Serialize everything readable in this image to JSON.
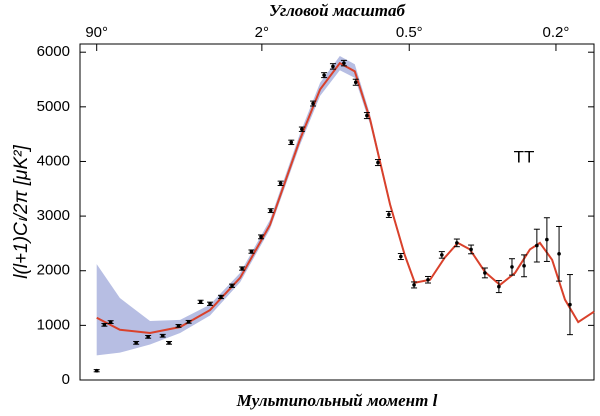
{
  "chart_data": {
    "type": "scatter",
    "top_axis_label": "Угловой масштаб",
    "x_label": "Мультипольный момент l",
    "y_label": "l(l+1)Cₗ/2π [μK²]",
    "annotation": "TT",
    "xscale": "power",
    "xscale_power": 0.4,
    "xlim": [
      0.6,
      1080
    ],
    "ylim": [
      0,
      6150
    ],
    "yticks": [
      0,
      1000,
      2000,
      3000,
      4000,
      5000,
      6000
    ],
    "x2ticks": [
      {
        "value": 2,
        "label": "90°"
      },
      {
        "value": 100,
        "label": "2°"
      },
      {
        "value": 380,
        "label": "0.5°"
      },
      {
        "value": 900,
        "label": "0.2°"
      }
    ],
    "band": {
      "color": "#b7bee3",
      "x": [
        2,
        5.8,
        14.7,
        28.9,
        49,
        76,
        110,
        152,
        185,
        221,
        251,
        284,
        331,
        368
      ],
      "lower": [
        450,
        500,
        650,
        860,
        1180,
        1790,
        2760,
        4300,
        5200,
        5670,
        5530,
        4680,
        3150,
        2250
      ],
      "upper": [
        2120,
        1500,
        1080,
        1100,
        1380,
        1960,
        2930,
        4510,
        5440,
        5930,
        5780,
        4860,
        3270,
        2330
      ]
    },
    "series": [
      {
        "color": "#000000",
        "x": [
          2,
          3,
          4,
          10,
          14,
          20,
          23,
          28,
          34,
          42,
          49,
          58,
          68,
          78,
          88,
          99,
          111,
          124,
          139,
          155,
          173,
          192,
          208,
          229,
          253,
          277,
          302,
          328,
          358,
          393,
          432,
          473,
          520,
          567,
          615,
          666,
          716,
          764,
          817,
          860,
          914,
          964
        ],
        "values": [
          170,
          1010,
          1060,
          680,
          790,
          810,
          680,
          990,
          1065,
          1430,
          1395,
          1520,
          1725,
          2040,
          2350,
          2620,
          3100,
          3600,
          4350,
          4590,
          5060,
          5580,
          5740,
          5800,
          5450,
          4840,
          3980,
          3030,
          2260,
          1740,
          1835,
          2290,
          2510,
          2390,
          1960,
          1710,
          2070,
          2090,
          2460,
          2570,
          2310,
          1380
        ],
        "errors": [
          20,
          25,
          25,
          25,
          25,
          25,
          25,
          25,
          25,
          30,
          30,
          30,
          30,
          30,
          30,
          35,
          35,
          40,
          40,
          40,
          45,
          45,
          50,
          50,
          55,
          55,
          55,
          55,
          55,
          55,
          60,
          60,
          70,
          80,
          90,
          110,
          150,
          200,
          300,
          400,
          500,
          550
        ]
      },
      {
        "type": "line",
        "color": "#d9412b",
        "x": [
          2,
          5.8,
          14.7,
          28.9,
          49,
          76,
          110,
          152,
          185,
          221,
          251,
          284,
          331,
          368,
          395,
          438,
          482,
          523,
          563,
          615,
          670,
          728,
          788,
          830,
          883,
          941,
          1003,
          1080
        ],
        "values": [
          1140,
          920,
          860,
          970,
          1280,
          1870,
          2840,
          4400,
          5320,
          5800,
          5650,
          4770,
          3210,
          2290,
          1780,
          1835,
          2240,
          2510,
          2390,
          1980,
          1740,
          1960,
          2390,
          2510,
          2200,
          1470,
          1060,
          1250
        ]
      }
    ]
  }
}
